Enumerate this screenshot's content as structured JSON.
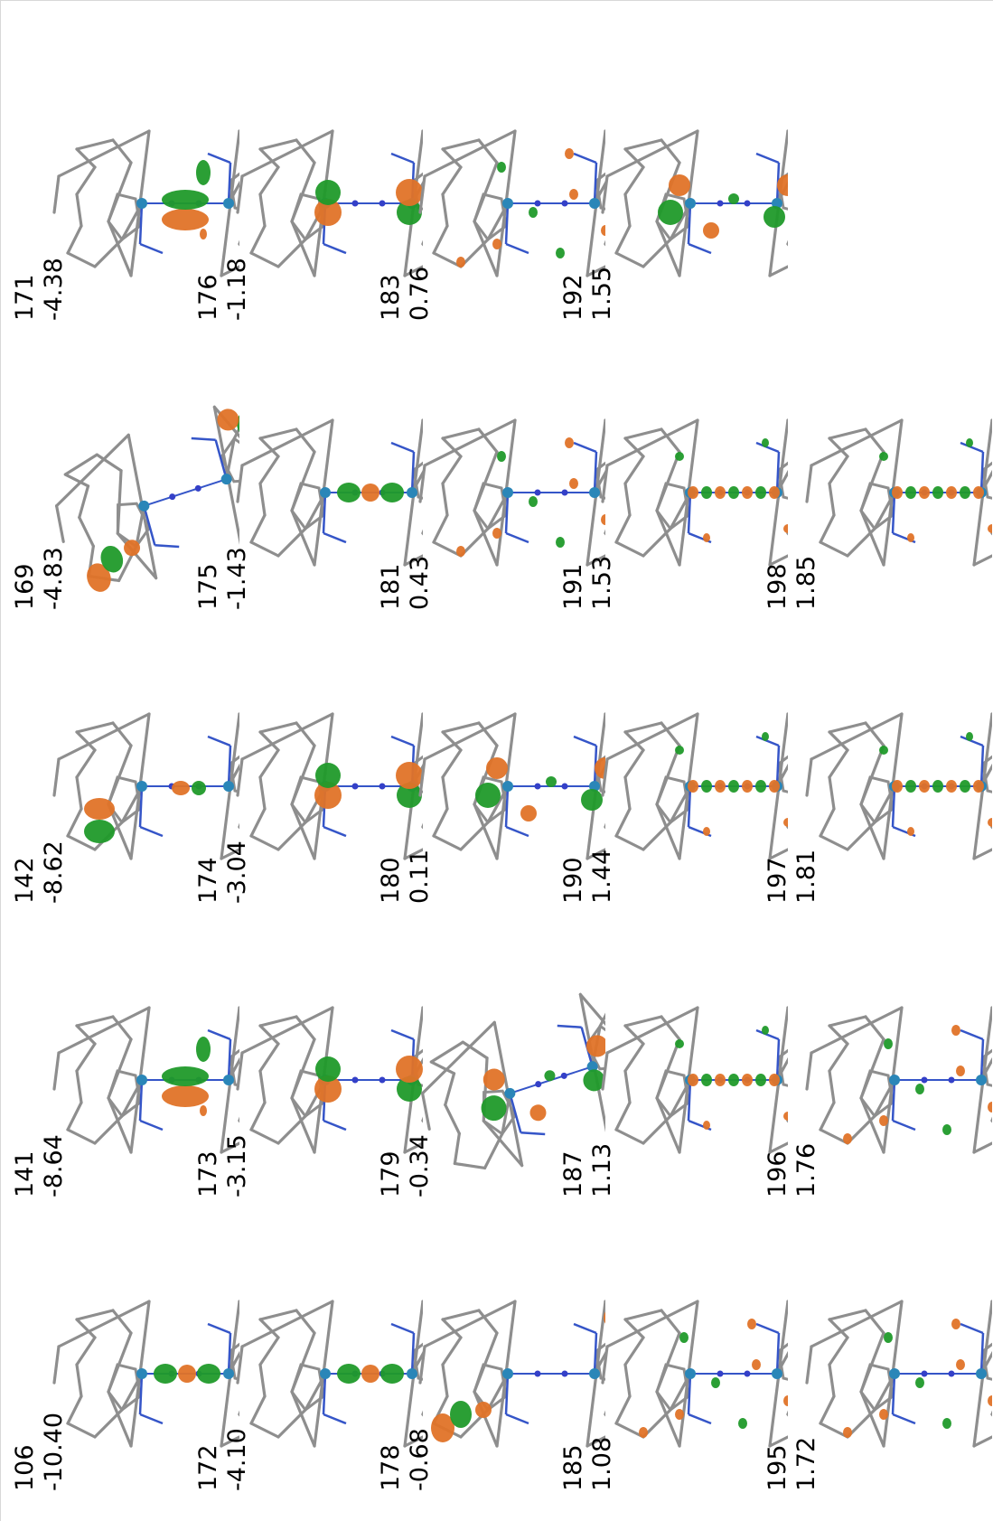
{
  "figure": {
    "colors": {
      "bond": "#8e8e8e",
      "nitrogen_bond": "#3555c8",
      "metal_atom": "#2a86b8",
      "dinitrogen_atom": "#3440c8",
      "lobe_positive": "#e07328",
      "lobe_negative": "#209a2a",
      "background": "#ffffff"
    },
    "orbitals": [
      {
        "id": "106",
        "energy": "-10.40",
        "pattern": "pi-axial",
        "tilt": 0
      },
      {
        "id": "141",
        "energy": "-8.64",
        "pattern": "pi-side",
        "tilt": 0
      },
      {
        "id": "142",
        "energy": "-8.62",
        "pattern": "ligand-split",
        "tilt": 0
      },
      {
        "id": "169",
        "energy": "-4.83",
        "pattern": "ligand-corners",
        "tilt": 1
      },
      {
        "id": "171",
        "energy": "-4.38",
        "pattern": "pi-side",
        "tilt": 0
      },
      {
        "id": "172",
        "energy": "-4.10",
        "pattern": "pi-axial",
        "tilt": 0
      },
      {
        "id": "173",
        "energy": "-3.15",
        "pattern": "metal-d",
        "tilt": 0
      },
      {
        "id": "174",
        "energy": "-3.04",
        "pattern": "metal-d",
        "tilt": 0
      },
      {
        "id": "175",
        "energy": "-1.43",
        "pattern": "pi-axial",
        "tilt": 0
      },
      {
        "id": "176",
        "energy": "-1.18",
        "pattern": "metal-d",
        "tilt": 0
      },
      {
        "id": "178",
        "energy": "-0.68",
        "pattern": "ligand-corners",
        "tilt": 0
      },
      {
        "id": "179",
        "energy": "-0.34",
        "pattern": "diffuse-large",
        "tilt": 1
      },
      {
        "id": "180",
        "energy": "0.11",
        "pattern": "diffuse-large",
        "tilt": 0
      },
      {
        "id": "181",
        "energy": "0.43",
        "pattern": "small-scatter",
        "tilt": 0
      },
      {
        "id": "183",
        "energy": "0.76",
        "pattern": "small-scatter",
        "tilt": 0
      },
      {
        "id": "185",
        "energy": "1.08",
        "pattern": "small-scatter",
        "tilt": 0
      },
      {
        "id": "187",
        "energy": "1.13",
        "pattern": "chain",
        "tilt": 0
      },
      {
        "id": "190",
        "energy": "1.44",
        "pattern": "chain",
        "tilt": 0
      },
      {
        "id": "191",
        "energy": "1.53",
        "pattern": "chain",
        "tilt": 0
      },
      {
        "id": "192",
        "energy": "1.55",
        "pattern": "diffuse-large",
        "tilt": 0
      },
      {
        "id": "195",
        "energy": "1.72",
        "pattern": "small-scatter",
        "tilt": 0
      },
      {
        "id": "196",
        "energy": "1.76",
        "pattern": "small-scatter",
        "tilt": 0
      },
      {
        "id": "197",
        "energy": "1.81",
        "pattern": "chain",
        "tilt": 0
      },
      {
        "id": "198",
        "energy": "1.85",
        "pattern": "chain",
        "tilt": 0
      }
    ]
  }
}
